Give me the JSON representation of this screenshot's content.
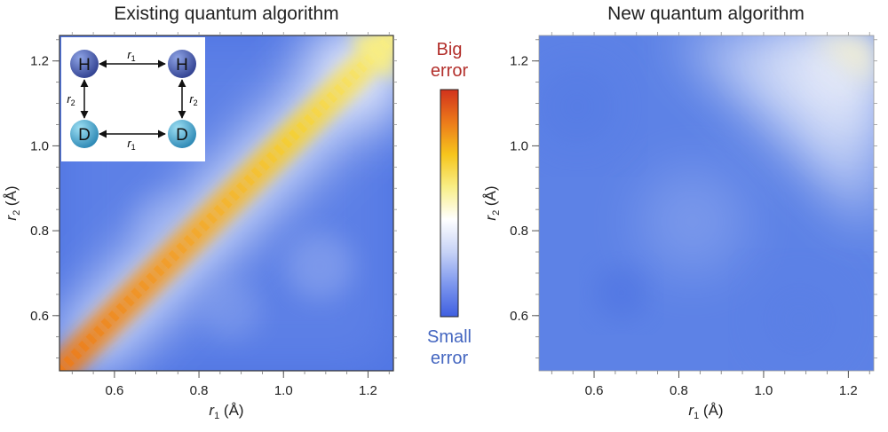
{
  "chart_data": [
    {
      "type": "heatmap",
      "title": "Existing quantum algorithm",
      "xlabel": {
        "sym": "r",
        "sub": "1",
        "unit": "(Å)"
      },
      "ylabel": {
        "sym": "r",
        "sub": "2",
        "unit": "(Å)"
      },
      "xlim": [
        0.47,
        1.26
      ],
      "ylim": [
        0.47,
        1.26
      ],
      "xticks": [
        0.6,
        0.8,
        1.0,
        1.2
      ],
      "xtick_labels": [
        "0.6",
        "0.8",
        "1.0",
        "1.2"
      ],
      "yticks": [
        0.6,
        0.8,
        1.0,
        1.2
      ],
      "ytick_labels": [
        "0.6",
        "0.8",
        "1.0",
        "1.2"
      ],
      "description": "error peaks along the diagonal r1 = r2, growing toward larger r",
      "inset": {
        "atoms": [
          "H",
          "H",
          "D",
          "D"
        ],
        "bonds": [
          {
            "sym": "r",
            "sub": "1"
          },
          {
            "sym": "r",
            "sub": "2"
          },
          {
            "sym": "r",
            "sub": "2"
          },
          {
            "sym": "r",
            "sub": "1"
          }
        ]
      }
    },
    {
      "type": "heatmap",
      "title": "New quantum algorithm",
      "xlabel": {
        "sym": "r",
        "sub": "1",
        "unit": "(Å)"
      },
      "ylabel": {
        "sym": "r",
        "sub": "2",
        "unit": "(Å)"
      },
      "xlim": [
        0.47,
        1.26
      ],
      "ylim": [
        0.47,
        1.26
      ],
      "xticks": [
        0.6,
        0.8,
        1.0,
        1.2
      ],
      "xtick_labels": [
        "0.6",
        "0.8",
        "1.0",
        "1.2"
      ],
      "yticks": [
        0.6,
        0.8,
        1.0,
        1.2
      ],
      "ytick_labels": [
        "0.6",
        "0.8",
        "1.0",
        "1.2"
      ],
      "description": "uniformly small error across the domain"
    }
  ],
  "colorbar": {
    "top_label": [
      "Big",
      "error"
    ],
    "bottom_label": [
      "Small",
      "error"
    ],
    "colors": [
      "#3f5fe0",
      "#7d97ee",
      "#c7d3f6",
      "#ffffff",
      "#f8ee86",
      "#f6c51c",
      "#ec7a1a",
      "#d1321c"
    ],
    "top_color": "#b3302c",
    "bottom_color": "#4466c0"
  },
  "colors": {
    "atom_H": "#4a5fb0",
    "atom_D": "#3fa3cf"
  }
}
